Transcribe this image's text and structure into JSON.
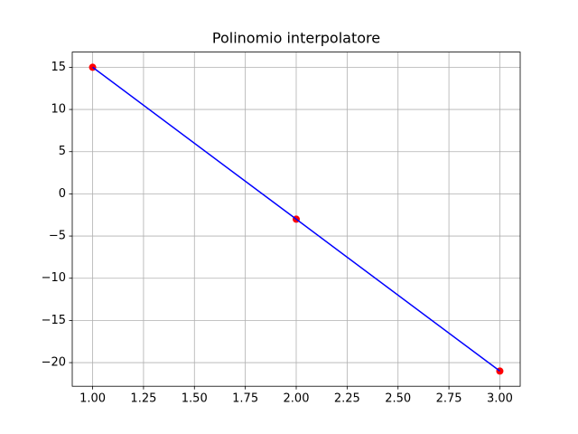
{
  "chart_data": {
    "type": "line",
    "title": "Polinomio interpolatore",
    "x": [
      1,
      2,
      3
    ],
    "series": [
      {
        "color": "#0000ff",
        "values": [
          15,
          -3,
          -21
        ]
      }
    ],
    "marker_color": "#ff0000",
    "xlim": [
      0.9,
      3.1
    ],
    "xticks": [
      {
        "value": 1,
        "label": "1.00"
      },
      {
        "value": 1.25,
        "label": "1.25"
      },
      {
        "value": 1.5,
        "label": "1.50"
      },
      {
        "value": 1.75,
        "label": "1.75"
      },
      {
        "value": 2,
        "label": "2.00"
      },
      {
        "value": 2.25,
        "label": "2.25"
      },
      {
        "value": 2.5,
        "label": "2.50"
      },
      {
        "value": 2.75,
        "label": "2.75"
      },
      {
        "value": 3,
        "label": "3.00"
      }
    ],
    "ylim": [
      -22.8,
      16.8
    ],
    "yticks": [
      {
        "value": -20,
        "label": "−20"
      },
      {
        "value": -15,
        "label": "−15"
      },
      {
        "value": -10,
        "label": "−10"
      },
      {
        "value": -5,
        "label": "−5"
      },
      0,
      5,
      10,
      15
    ],
    "grid": true
  }
}
